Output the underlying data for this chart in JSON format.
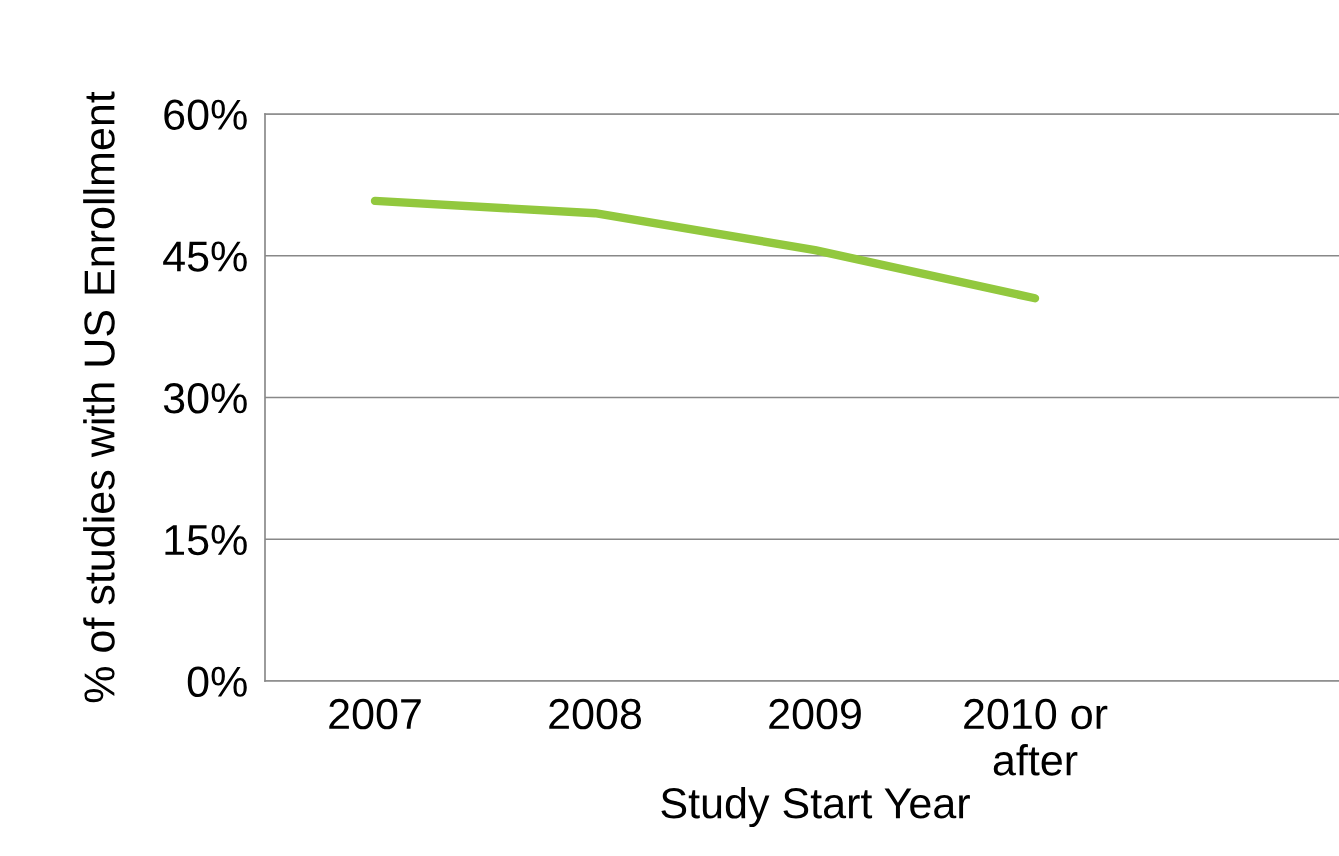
{
  "chart_data": {
    "type": "line",
    "xlabel": "Study Start Year",
    "ylabel": "% of studies with US Enrollment",
    "categories": [
      "2007",
      "2008",
      "2009",
      "2010 or\nafter",
      null
    ],
    "series": [
      {
        "color": "#92c83e",
        "values": [
          50.8,
          49.5,
          45.6,
          40.5,
          null
        ]
      }
    ],
    "ylim": [
      0,
      60
    ],
    "yticks": [
      {
        "value": 0,
        "label": "0%"
      },
      {
        "value": 15,
        "label": "15%"
      },
      {
        "value": 30,
        "label": "30%"
      },
      {
        "value": 45,
        "label": "45%"
      },
      {
        "value": 60,
        "label": "60%"
      }
    ],
    "grid": "y",
    "legend": false,
    "marker": "none",
    "line_style": "solid"
  }
}
